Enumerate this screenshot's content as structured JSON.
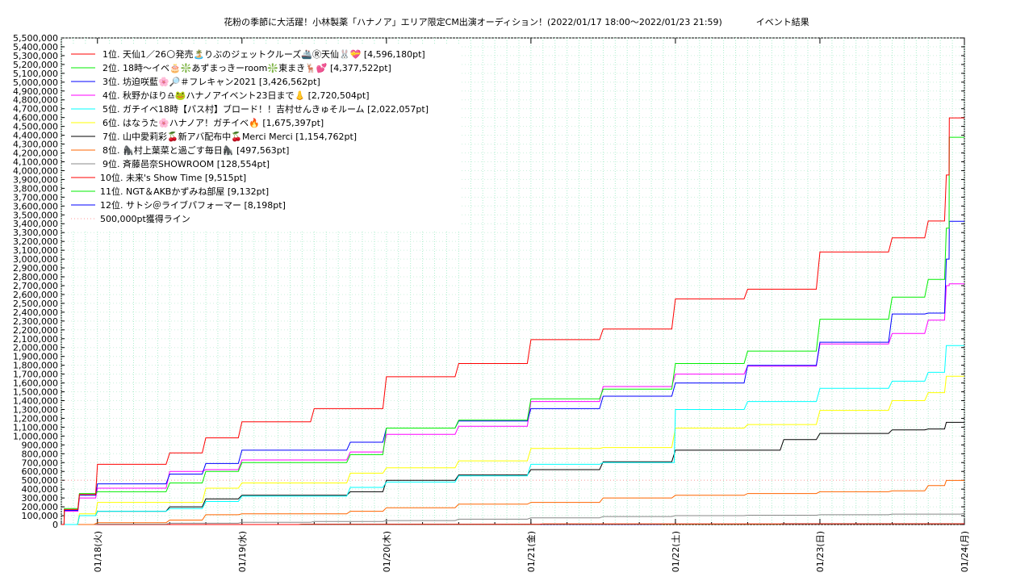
{
  "chart_data": {
    "type": "line",
    "title": "花粉の季節に大活躍！小林製薬「ハナノア」エリア限定CM出演オーディション！(2022/01/17 18:00〜2022/01/23 21:59)",
    "subtitle": "イベント結果",
    "xlabel": "",
    "ylabel": "",
    "ylim": [
      0,
      5500000
    ],
    "ytick_step": 100000,
    "xlim_hours": [
      0,
      150
    ],
    "xticks": [
      {
        "label": "01/18(火)",
        "hour": 6
      },
      {
        "label": "01/19(水)",
        "hour": 30
      },
      {
        "label": "01/20(木)",
        "hour": 54
      },
      {
        "label": "01/21(金)",
        "hour": 78
      },
      {
        "label": "01/22(土)",
        "hour": 102
      },
      {
        "label": "01/23(日)",
        "hour": 126
      },
      {
        "label": "01/24(月)",
        "hour": 150
      }
    ],
    "grid": true,
    "legend_position": "top-left",
    "reference_line": {
      "name": "500,000pt獲得ライン",
      "value": 500000,
      "color": "#ff9999"
    },
    "series": [
      {
        "name": "1位. 天仙1／26🌕発売🏝️りぶのジェットクルーズ🚢Ⓡ天仙🐰💝 [4,596,180pt]",
        "color": "#ff0000",
        "points": [
          [
            0,
            0
          ],
          [
            0.5,
            170000
          ],
          [
            3,
            340000
          ],
          [
            6,
            680000
          ],
          [
            18,
            810000
          ],
          [
            24,
            980000
          ],
          [
            30,
            1160000
          ],
          [
            42,
            1310000
          ],
          [
            54,
            1670000
          ],
          [
            66,
            1820000
          ],
          [
            78,
            2090000
          ],
          [
            90,
            2210000
          ],
          [
            102,
            2550000
          ],
          [
            114,
            2660000
          ],
          [
            126,
            3080000
          ],
          [
            138,
            3240000
          ],
          [
            144,
            3430000
          ],
          [
            147,
            3950000
          ],
          [
            147.5,
            4596180
          ],
          [
            150,
            4596180
          ]
        ]
      },
      {
        "name": "2位. 18時〜イベ🎂❇️あずまっきーroom❇️東まき🦌💕 [4,377,522pt]",
        "color": "#00ee00",
        "points": [
          [
            0,
            0
          ],
          [
            0.5,
            180000
          ],
          [
            3,
            350000
          ],
          [
            6,
            370000
          ],
          [
            18,
            470000
          ],
          [
            24,
            600000
          ],
          [
            30,
            700000
          ],
          [
            48,
            790000
          ],
          [
            54,
            1090000
          ],
          [
            66,
            1180000
          ],
          [
            78,
            1420000
          ],
          [
            90,
            1530000
          ],
          [
            102,
            1820000
          ],
          [
            114,
            1960000
          ],
          [
            126,
            2320000
          ],
          [
            138,
            2570000
          ],
          [
            144,
            2770000
          ],
          [
            147,
            3350000
          ],
          [
            147.5,
            4377522
          ],
          [
            150,
            4377522
          ]
        ]
      },
      {
        "name": "3位. 坊迫咲藍🌸🔎＃フレキャン2021 [3,426,562pt]",
        "color": "#0000ff",
        "points": [
          [
            0,
            0
          ],
          [
            0.5,
            160000
          ],
          [
            3,
            330000
          ],
          [
            6,
            460000
          ],
          [
            18,
            570000
          ],
          [
            24,
            690000
          ],
          [
            30,
            840000
          ],
          [
            48,
            930000
          ],
          [
            54,
            1090000
          ],
          [
            66,
            1170000
          ],
          [
            78,
            1310000
          ],
          [
            90,
            1450000
          ],
          [
            102,
            1600000
          ],
          [
            114,
            1800000
          ],
          [
            126,
            2060000
          ],
          [
            138,
            2380000
          ],
          [
            144,
            2390000
          ],
          [
            147,
            3000000
          ],
          [
            147.5,
            3426562
          ],
          [
            150,
            3426562
          ]
        ]
      },
      {
        "name": "4位. 秋野かほり♎🐸ハナノアイベント23日まで👃 [2,720,504pt]",
        "color": "#ff00ff",
        "points": [
          [
            0,
            0
          ],
          [
            0.5,
            150000
          ],
          [
            3,
            300000
          ],
          [
            6,
            410000
          ],
          [
            18,
            600000
          ],
          [
            24,
            620000
          ],
          [
            30,
            730000
          ],
          [
            48,
            820000
          ],
          [
            54,
            1020000
          ],
          [
            66,
            1110000
          ],
          [
            78,
            1390000
          ],
          [
            90,
            1560000
          ],
          [
            102,
            1700000
          ],
          [
            114,
            1790000
          ],
          [
            126,
            2040000
          ],
          [
            138,
            2160000
          ],
          [
            144,
            2310000
          ],
          [
            147,
            2700000
          ],
          [
            147.5,
            2720504
          ],
          [
            150,
            2720504
          ]
        ]
      },
      {
        "name": "5位. ガチイベ18時【パス村】ブロード！！吉村せんきゅそルーム [2,022,057pt]",
        "color": "#00ffff",
        "points": [
          [
            0,
            0
          ],
          [
            3,
            100000
          ],
          [
            6,
            150000
          ],
          [
            18,
            180000
          ],
          [
            24,
            260000
          ],
          [
            30,
            320000
          ],
          [
            48,
            420000
          ],
          [
            54,
            480000
          ],
          [
            66,
            550000
          ],
          [
            78,
            680000
          ],
          [
            90,
            700000
          ],
          [
            100,
            700000
          ],
          [
            102,
            1300000
          ],
          [
            114,
            1390000
          ],
          [
            126,
            1540000
          ],
          [
            138,
            1620000
          ],
          [
            144,
            1720000
          ],
          [
            147,
            2022057
          ],
          [
            150,
            2022057
          ]
        ]
      },
      {
        "name": "6位. はなうた🌸ハナノア！ガチイベ🔥 [1,675,397pt]",
        "color": "#ffff00",
        "points": [
          [
            0,
            0
          ],
          [
            3,
            120000
          ],
          [
            6,
            250000
          ],
          [
            18,
            250000
          ],
          [
            24,
            410000
          ],
          [
            30,
            470000
          ],
          [
            48,
            580000
          ],
          [
            54,
            640000
          ],
          [
            66,
            720000
          ],
          [
            78,
            860000
          ],
          [
            90,
            870000
          ],
          [
            102,
            1090000
          ],
          [
            114,
            1130000
          ],
          [
            126,
            1290000
          ],
          [
            138,
            1400000
          ],
          [
            144,
            1490000
          ],
          [
            147,
            1675397
          ],
          [
            150,
            1675397
          ]
        ]
      },
      {
        "name": "7位. 山中愛莉彩🍒新アバ配布中🍒Merci Merci [1,154,762pt]",
        "color": "#000000",
        "points": [
          [
            0,
            0
          ],
          [
            3,
            100000
          ],
          [
            6,
            150000
          ],
          [
            18,
            200000
          ],
          [
            24,
            290000
          ],
          [
            30,
            330000
          ],
          [
            48,
            370000
          ],
          [
            54,
            500000
          ],
          [
            66,
            560000
          ],
          [
            78,
            620000
          ],
          [
            90,
            710000
          ],
          [
            102,
            840000
          ],
          [
            114,
            840000
          ],
          [
            120,
            960000
          ],
          [
            126,
            1030000
          ],
          [
            138,
            1070000
          ],
          [
            144,
            1080000
          ],
          [
            147,
            1154762
          ],
          [
            150,
            1154762
          ]
        ]
      },
      {
        "name": "8位. 🦍村上葉菜と過ごす毎日🦍 [497,563pt]",
        "color": "#ff6600",
        "points": [
          [
            0,
            0
          ],
          [
            6,
            20000
          ],
          [
            18,
            50000
          ],
          [
            24,
            110000
          ],
          [
            30,
            120000
          ],
          [
            48,
            150000
          ],
          [
            54,
            190000
          ],
          [
            66,
            230000
          ],
          [
            78,
            250000
          ],
          [
            90,
            300000
          ],
          [
            102,
            330000
          ],
          [
            114,
            350000
          ],
          [
            126,
            370000
          ],
          [
            138,
            380000
          ],
          [
            144,
            440000
          ],
          [
            147,
            497563
          ],
          [
            150,
            497563
          ]
        ]
      },
      {
        "name": "9位. 斉藤邑奈SHOWROOM [128,554pt]",
        "color": "#888888",
        "points": [
          [
            0,
            0
          ],
          [
            6,
            5000
          ],
          [
            18,
            15000
          ],
          [
            30,
            25000
          ],
          [
            42,
            35000
          ],
          [
            54,
            45000
          ],
          [
            66,
            60000
          ],
          [
            78,
            75000
          ],
          [
            90,
            90000
          ],
          [
            102,
            100000
          ],
          [
            114,
            105000
          ],
          [
            126,
            110000
          ],
          [
            138,
            118000
          ],
          [
            150,
            128554
          ]
        ]
      },
      {
        "name": "10位. 未来's Show Time [9,515pt]",
        "color": "#ff0000",
        "points": [
          [
            0,
            0
          ],
          [
            40,
            3000
          ],
          [
            80,
            6000
          ],
          [
            120,
            8000
          ],
          [
            150,
            9515
          ]
        ]
      },
      {
        "name": "11位. NGT＆AKBかずみね部屋 [9,132pt]",
        "color": "#00ee00",
        "points": [
          [
            0,
            0
          ],
          [
            40,
            2000
          ],
          [
            80,
            5000
          ],
          [
            120,
            7000
          ],
          [
            150,
            9132
          ]
        ]
      },
      {
        "name": "12位. サトシ＠ライブパフォーマー [8,198pt]",
        "color": "#0000ff",
        "points": [
          [
            0,
            0
          ],
          [
            40,
            1000
          ],
          [
            80,
            3000
          ],
          [
            100,
            5000
          ],
          [
            120,
            7000
          ],
          [
            150,
            8198
          ]
        ]
      }
    ]
  }
}
